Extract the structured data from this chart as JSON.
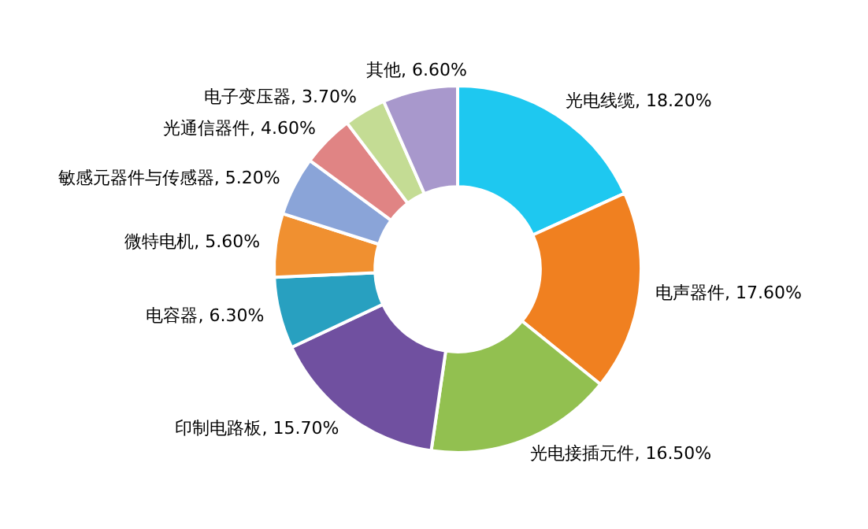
{
  "chart_data": {
    "type": "donut",
    "categories": [
      "光电线缆",
      "电声器件",
      "光电接插元件",
      "印制电路板",
      "电容器",
      "微特电机",
      "敏感元器件与传感器",
      "光通信器件",
      "电子变压器",
      "其他"
    ],
    "values": [
      18.2,
      17.6,
      16.5,
      15.7,
      6.3,
      5.6,
      5.2,
      4.6,
      3.7,
      6.6
    ],
    "value_labels": [
      "18.20%",
      "17.60%",
      "16.50%",
      "15.70%",
      "6.30%",
      "5.60%",
      "5.20%",
      "4.60%",
      "3.70%",
      "6.60%"
    ],
    "colors": [
      "#1ec8f0",
      "#f08020",
      "#92c050",
      "#7050a0",
      "#28a0c0",
      "#f09030",
      "#8aa4d8",
      "#e08484",
      "#c4dc94",
      "#a898cc"
    ],
    "legend": false
  }
}
